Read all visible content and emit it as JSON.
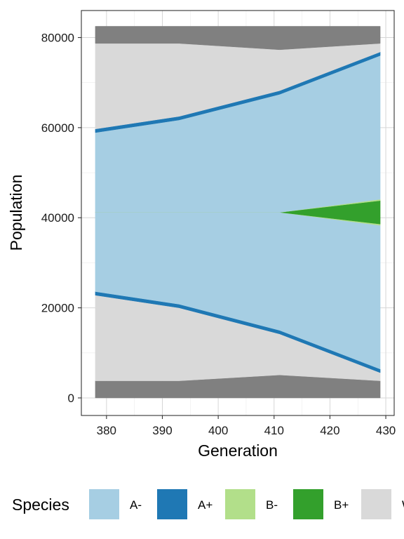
{
  "chart_data": {
    "type": "area",
    "xlabel": "Generation",
    "ylabel": "Population",
    "x": [
      378,
      393,
      411,
      429
    ],
    "xlim": [
      375.5,
      431.5
    ],
    "ylim": [
      -3900,
      86000
    ],
    "xticks": [
      380,
      390,
      400,
      410,
      420,
      430
    ],
    "yticks": [
      0,
      20000,
      40000,
      60000,
      80000
    ],
    "xtick_labels": [
      "380",
      "390",
      "400",
      "410",
      "420",
      "430"
    ],
    "ytick_labels": [
      "0",
      "20000",
      "40000",
      "60000",
      "80000"
    ],
    "grid": true,
    "legend_position": "bottom",
    "legend_title": "Species",
    "center_line": 41200,
    "layers": [
      {
        "name": "dark-bottom",
        "color": "#808080",
        "lower": [
          0,
          0,
          0,
          0
        ],
        "upper": [
          3800,
          3800,
          5100,
          3800
        ]
      },
      {
        "name": "W-",
        "color": "#d9d9d9",
        "lower": [
          3800,
          3800,
          5100,
          3800
        ],
        "upper": [
          22800,
          20000,
          14200,
          5600
        ]
      },
      {
        "name": "A+",
        "color": "#1f78b4",
        "lower": [
          22800,
          20000,
          14200,
          5600
        ],
        "upper": [
          23600,
          20800,
          15000,
          6400
        ]
      },
      {
        "name": "A-",
        "color": "#a6cee3",
        "lower": [
          23600,
          20800,
          15000,
          6400
        ],
        "upper": [
          41200,
          41200,
          41200,
          38300
        ]
      },
      {
        "name": "B-",
        "color": "#b2df8a",
        "lower": [
          41200,
          41200,
          41200,
          38300
        ],
        "upper": [
          41200,
          41200,
          41200,
          38600
        ]
      },
      {
        "name": "B+",
        "color": "#33a02c",
        "lower": [
          41200,
          41200,
          41200,
          38600
        ],
        "upper": [
          41200,
          41200,
          41200,
          43800
        ]
      },
      {
        "name": "B-",
        "color": "#b2df8a",
        "lower": [
          41200,
          41200,
          41200,
          43800
        ],
        "upper": [
          41200,
          41200,
          41200,
          44100
        ]
      },
      {
        "name": "A-",
        "color": "#a6cee3",
        "lower": [
          41200,
          41200,
          41200,
          44100
        ],
        "upper": [
          58900,
          61700,
          67400,
          76000
        ]
      },
      {
        "name": "A+",
        "color": "#1f78b4",
        "lower": [
          58900,
          61700,
          67400,
          76000
        ],
        "upper": [
          59700,
          62500,
          68200,
          76800
        ]
      },
      {
        "name": "W-",
        "color": "#d9d9d9",
        "lower": [
          59700,
          62500,
          68200,
          76800
        ],
        "upper": [
          78700,
          78700,
          77300,
          78700
        ]
      },
      {
        "name": "dark-top",
        "color": "#808080",
        "lower": [
          78700,
          78700,
          77300,
          78700
        ],
        "upper": [
          82500,
          82500,
          82500,
          82500
        ]
      }
    ],
    "legend": [
      {
        "label": "A-",
        "color": "#a6cee3"
      },
      {
        "label": "A+",
        "color": "#1f78b4"
      },
      {
        "label": "B-",
        "color": "#b2df8a"
      },
      {
        "label": "B+",
        "color": "#33a02c"
      },
      {
        "label": "W-",
        "color": "#d9d9d9"
      }
    ]
  }
}
